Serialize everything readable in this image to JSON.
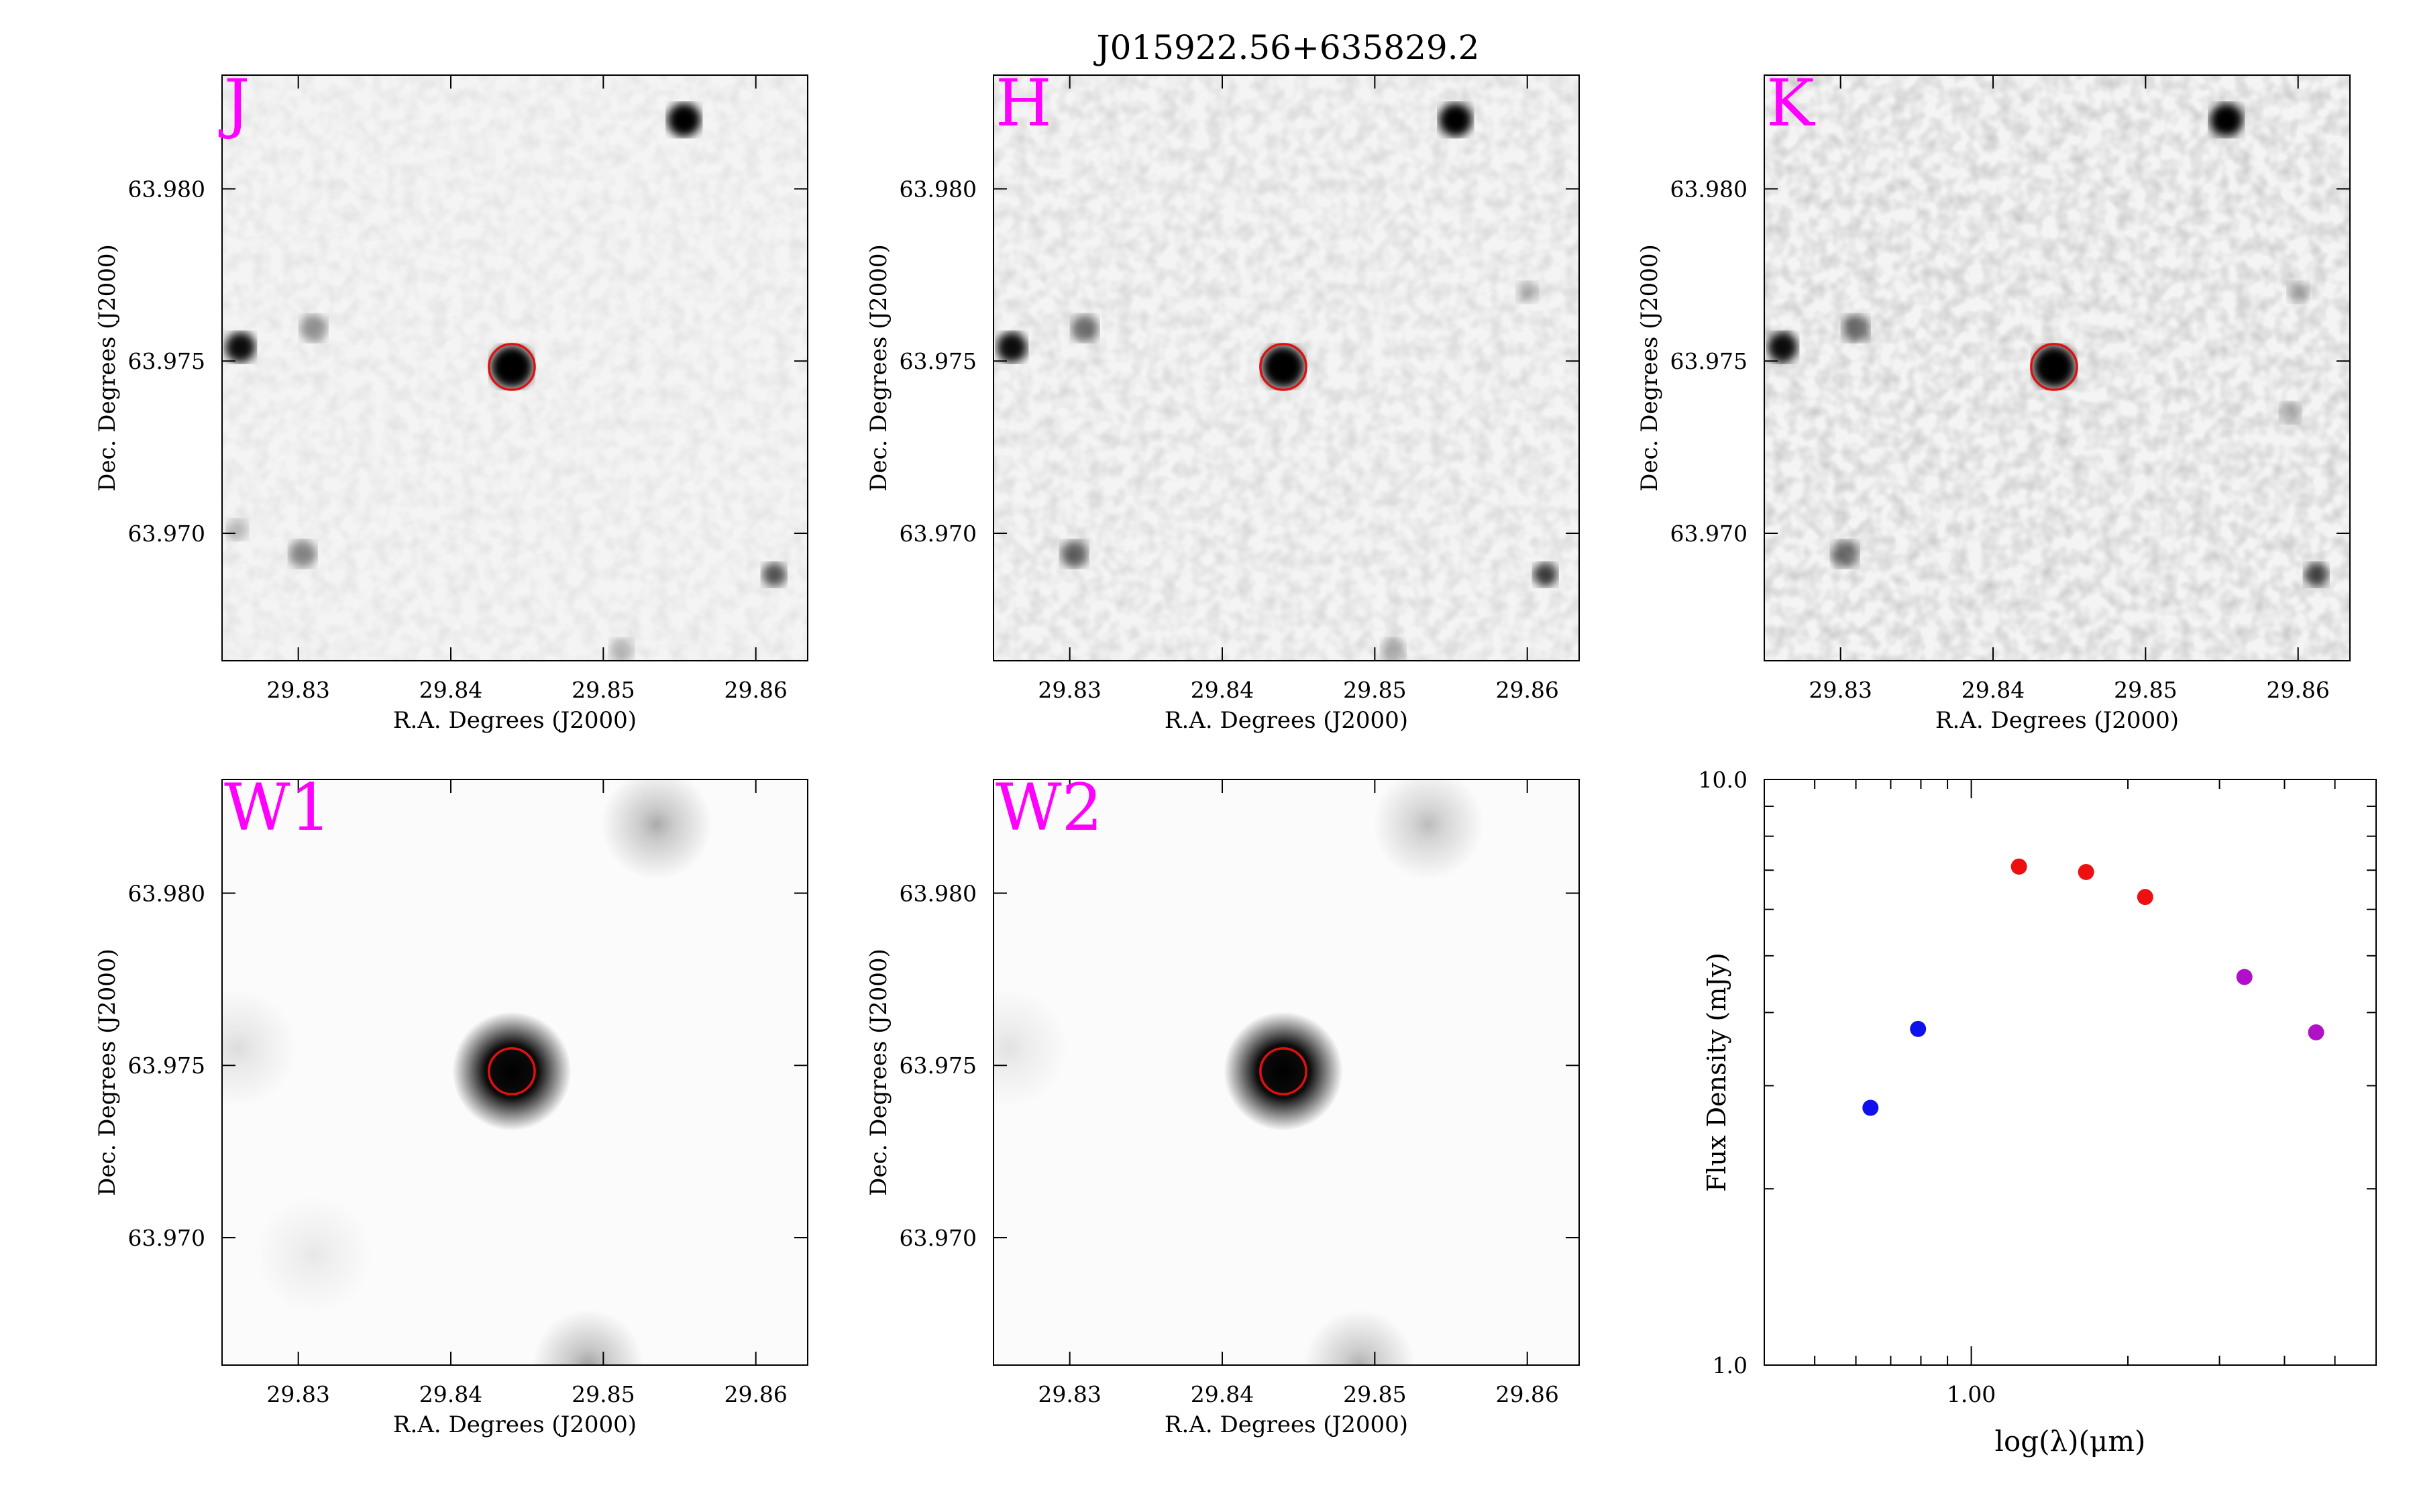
{
  "figure_title": "J015922.56+635829.2",
  "colors": {
    "band_label": "#ff00ff",
    "aperture": "#e01010",
    "blue_points": "#1010ee",
    "red_points": "#ee1010",
    "magenta_points": "#b010c8"
  },
  "chart_data": [
    {
      "type": "heatmap",
      "band": "J",
      "xlabel": "R.A. Degrees (J2000)",
      "ylabel": "Dec. Degrees (J2000)",
      "xlim": [
        29.825,
        29.8634
      ],
      "ylim": [
        63.9663,
        63.9833
      ],
      "xticks": [
        "29.83",
        "29.84",
        "29.85",
        "29.86"
      ],
      "yticks": [
        "63.970",
        "63.975",
        "63.980"
      ],
      "target": {
        "ra": 29.844,
        "dec": 63.97483
      },
      "sources": [
        {
          "ra": 29.8553,
          "dec": 63.982,
          "r": 0.0011,
          "a": 1.0
        },
        {
          "ra": 29.844,
          "dec": 63.97483,
          "r": 0.0014,
          "a": 1.0
        },
        {
          "ra": 29.8262,
          "dec": 63.9754,
          "r": 0.001,
          "a": 0.95
        },
        {
          "ra": 29.831,
          "dec": 63.97595,
          "r": 0.0009,
          "a": 0.4
        },
        {
          "ra": 29.8612,
          "dec": 63.9688,
          "r": 0.0008,
          "a": 0.65
        },
        {
          "ra": 29.8303,
          "dec": 63.9694,
          "r": 0.0009,
          "a": 0.45
        },
        {
          "ra": 29.826,
          "dec": 63.9701,
          "r": 0.0007,
          "a": 0.25
        },
        {
          "ra": 29.8512,
          "dec": 63.9666,
          "r": 0.0008,
          "a": 0.25
        }
      ],
      "noise": 0.07,
      "aperture_radius_deg": 0.0015
    },
    {
      "type": "heatmap",
      "band": "H",
      "xlabel": "R.A. Degrees (J2000)",
      "ylabel": "Dec. Degrees (J2000)",
      "xlim": [
        29.825,
        29.8634
      ],
      "ylim": [
        63.9663,
        63.9833
      ],
      "xticks": [
        "29.83",
        "29.84",
        "29.85",
        "29.86"
      ],
      "yticks": [
        "63.970",
        "63.975",
        "63.980"
      ],
      "target": {
        "ra": 29.844,
        "dec": 63.97483
      },
      "sources": [
        {
          "ra": 29.8553,
          "dec": 63.982,
          "r": 0.0011,
          "a": 1.0
        },
        {
          "ra": 29.844,
          "dec": 63.97483,
          "r": 0.0014,
          "a": 1.0
        },
        {
          "ra": 29.8262,
          "dec": 63.9754,
          "r": 0.001,
          "a": 0.95
        },
        {
          "ra": 29.831,
          "dec": 63.97595,
          "r": 0.0009,
          "a": 0.55
        },
        {
          "ra": 29.8612,
          "dec": 63.9688,
          "r": 0.0008,
          "a": 0.75
        },
        {
          "ra": 29.8303,
          "dec": 63.9694,
          "r": 0.0009,
          "a": 0.6
        },
        {
          "ra": 29.86,
          "dec": 63.977,
          "r": 0.0007,
          "a": 0.25
        },
        {
          "ra": 29.8512,
          "dec": 63.9666,
          "r": 0.0008,
          "a": 0.3
        }
      ],
      "noise": 0.12,
      "aperture_radius_deg": 0.0015
    },
    {
      "type": "heatmap",
      "band": "K",
      "xlabel": "R.A. Degrees (J2000)",
      "ylabel": "Dec. Degrees (J2000)",
      "xlim": [
        29.825,
        29.8634
      ],
      "ylim": [
        63.9663,
        63.9833
      ],
      "xticks": [
        "29.83",
        "29.84",
        "29.85",
        "29.86"
      ],
      "yticks": [
        "63.970",
        "63.975",
        "63.980"
      ],
      "target": {
        "ra": 29.844,
        "dec": 63.97483
      },
      "sources": [
        {
          "ra": 29.8553,
          "dec": 63.982,
          "r": 0.0011,
          "a": 1.0
        },
        {
          "ra": 29.844,
          "dec": 63.97483,
          "r": 0.0014,
          "a": 1.0
        },
        {
          "ra": 29.8262,
          "dec": 63.9754,
          "r": 0.001,
          "a": 0.95
        },
        {
          "ra": 29.831,
          "dec": 63.97595,
          "r": 0.0009,
          "a": 0.55
        },
        {
          "ra": 29.8612,
          "dec": 63.9688,
          "r": 0.0008,
          "a": 0.7
        },
        {
          "ra": 29.8303,
          "dec": 63.9694,
          "r": 0.0009,
          "a": 0.55
        },
        {
          "ra": 29.8595,
          "dec": 63.9735,
          "r": 0.0007,
          "a": 0.3
        },
        {
          "ra": 29.86,
          "dec": 63.977,
          "r": 0.0007,
          "a": 0.3
        }
      ],
      "noise": 0.18,
      "aperture_radius_deg": 0.0015
    },
    {
      "type": "heatmap",
      "band": "W1",
      "xlabel": "R.A. Degrees (J2000)",
      "ylabel": "Dec. Degrees (J2000)",
      "xlim": [
        29.825,
        29.8634
      ],
      "ylim": [
        63.9663,
        63.9833
      ],
      "xticks": [
        "29.83",
        "29.84",
        "29.85",
        "29.86"
      ],
      "yticks": [
        "63.970",
        "63.975",
        "63.980"
      ],
      "target": {
        "ra": 29.844,
        "dec": 63.97483
      },
      "sources": [
        {
          "ra": 29.844,
          "dec": 63.97483,
          "r": 0.003,
          "a": 1.0
        },
        {
          "ra": 29.8535,
          "dec": 63.982,
          "r": 0.0028,
          "a": 0.32
        },
        {
          "ra": 29.849,
          "dec": 63.9663,
          "r": 0.0028,
          "a": 0.35
        },
        {
          "ra": 29.826,
          "dec": 63.9755,
          "r": 0.003,
          "a": 0.12
        },
        {
          "ra": 29.831,
          "dec": 63.9695,
          "r": 0.003,
          "a": 0.08
        }
      ],
      "noise": 0.0,
      "aperture_radius_deg": 0.0015
    },
    {
      "type": "heatmap",
      "band": "W2",
      "xlabel": "R.A. Degrees (J2000)",
      "ylabel": "Dec. Degrees (J2000)",
      "xlim": [
        29.825,
        29.8634
      ],
      "ylim": [
        63.9663,
        63.9833
      ],
      "xticks": [
        "29.83",
        "29.84",
        "29.85",
        "29.86"
      ],
      "yticks": [
        "63.970",
        "63.975",
        "63.980"
      ],
      "target": {
        "ra": 29.844,
        "dec": 63.97483
      },
      "sources": [
        {
          "ra": 29.844,
          "dec": 63.97483,
          "r": 0.003,
          "a": 1.0
        },
        {
          "ra": 29.8535,
          "dec": 63.982,
          "r": 0.0028,
          "a": 0.25
        },
        {
          "ra": 29.849,
          "dec": 63.9663,
          "r": 0.0028,
          "a": 0.3
        },
        {
          "ra": 29.826,
          "dec": 63.9755,
          "r": 0.003,
          "a": 0.1
        }
      ],
      "noise": 0.0,
      "aperture_radius_deg": 0.0015
    },
    {
      "type": "scatter",
      "xlabel": "log(λ)(μm)",
      "ylabel": "Flux Density (mJy)",
      "xscale": "log",
      "yscale": "log",
      "xlim": [
        0.4,
        6.0
      ],
      "ylim": [
        1.0,
        10.0
      ],
      "xtick_labels": [
        "1.00"
      ],
      "ytick_labels": [
        "1.0",
        "10.0"
      ],
      "series": [
        {
          "color": "blue_points",
          "x": [
            0.64,
            0.79
          ],
          "y": [
            2.75,
            3.75
          ]
        },
        {
          "color": "red_points",
          "x": [
            1.235,
            1.662,
            2.159
          ],
          "y": [
            7.1,
            6.95,
            6.3
          ]
        },
        {
          "color": "magenta_points",
          "x": [
            3.35,
            4.6
          ],
          "y": [
            4.6,
            3.7
          ]
        }
      ]
    }
  ]
}
